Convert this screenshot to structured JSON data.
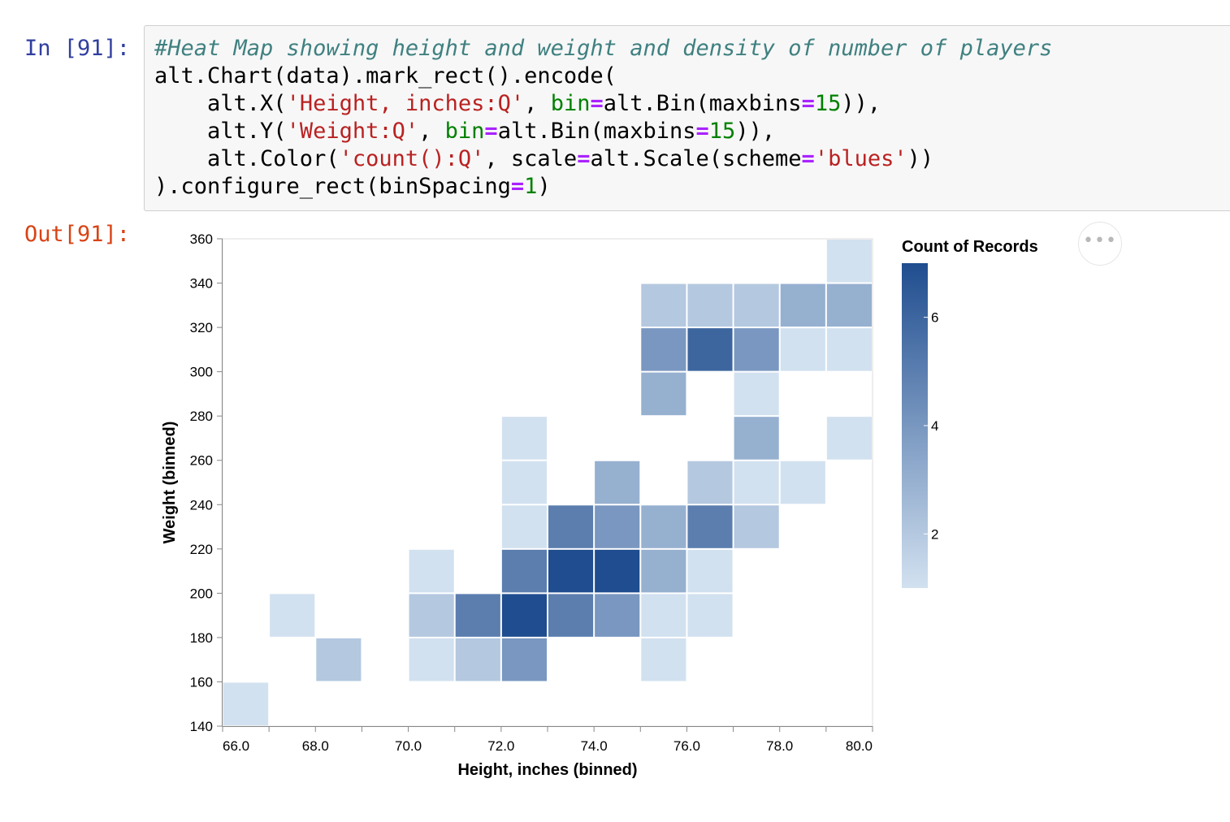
{
  "notebook": {
    "in_prompt": "In [91]:",
    "out_prompt": "Out[91]:",
    "code_lines": [
      [
        {
          "t": "#Heat Map showing height and weight and density of number of players",
          "c": "comment"
        }
      ],
      [
        {
          "t": "alt.Chart(data).mark_rect().encode(",
          "c": ""
        }
      ],
      [
        {
          "t": "    alt.X(",
          "c": ""
        },
        {
          "t": "'Height, inches:Q'",
          "c": "string"
        },
        {
          "t": ", ",
          "c": ""
        },
        {
          "t": "bin",
          "c": "kw"
        },
        {
          "t": "=",
          "c": "op"
        },
        {
          "t": "alt.Bin(maxbins",
          "c": ""
        },
        {
          "t": "=",
          "c": "op"
        },
        {
          "t": "15",
          "c": "num"
        },
        {
          "t": ")),",
          "c": ""
        }
      ],
      [
        {
          "t": "    alt.Y(",
          "c": ""
        },
        {
          "t": "'Weight:Q'",
          "c": "string"
        },
        {
          "t": ", ",
          "c": ""
        },
        {
          "t": "bin",
          "c": "kw"
        },
        {
          "t": "=",
          "c": "op"
        },
        {
          "t": "alt.Bin(maxbins",
          "c": ""
        },
        {
          "t": "=",
          "c": "op"
        },
        {
          "t": "15",
          "c": "num"
        },
        {
          "t": ")),",
          "c": ""
        }
      ],
      [
        {
          "t": "    alt.Color(",
          "c": ""
        },
        {
          "t": "'count():Q'",
          "c": "string"
        },
        {
          "t": ", scale",
          "c": ""
        },
        {
          "t": "=",
          "c": "op"
        },
        {
          "t": "alt.Scale(scheme",
          "c": ""
        },
        {
          "t": "=",
          "c": "op"
        },
        {
          "t": "'blues'",
          "c": "string"
        },
        {
          "t": "))",
          "c": ""
        }
      ],
      [
        {
          "t": ").configure_rect(binSpacing",
          "c": ""
        },
        {
          "t": "=",
          "c": "op"
        },
        {
          "t": "1",
          "c": "num"
        },
        {
          "t": ")",
          "c": ""
        }
      ]
    ],
    "actions_icon": "ellipsis-icon",
    "actions_label": "•••"
  },
  "colors": {
    "scale_low": "#d2e1f0",
    "scale_high": "#1f4d8f"
  },
  "chart_data": {
    "type": "heatmap",
    "xlabel": "Height, inches (binned)",
    "ylabel": "Weight (binned)",
    "legend_title": "Count of Records",
    "legend_position": "right",
    "xlim": [
      66,
      80
    ],
    "ylim": [
      140,
      360
    ],
    "x_bin_step": 1,
    "y_bin_step": 20,
    "x_ticks": [
      "66.0",
      "68.0",
      "70.0",
      "72.0",
      "74.0",
      "76.0",
      "78.0",
      "80.0"
    ],
    "y_ticks": [
      "140",
      "160",
      "180",
      "200",
      "220",
      "240",
      "260",
      "280",
      "300",
      "320",
      "340",
      "360"
    ],
    "legend_ticks": [
      "2",
      "4",
      "6"
    ],
    "color_domain": [
      1,
      7
    ],
    "cells": [
      {
        "x": 66,
        "y": 140,
        "count": 1
      },
      {
        "x": 67,
        "y": 180,
        "count": 1
      },
      {
        "x": 68,
        "y": 160,
        "count": 2
      },
      {
        "x": 70,
        "y": 160,
        "count": 1
      },
      {
        "x": 70,
        "y": 180,
        "count": 2
      },
      {
        "x": 70,
        "y": 200,
        "count": 1
      },
      {
        "x": 71,
        "y": 160,
        "count": 2
      },
      {
        "x": 71,
        "y": 180,
        "count": 5
      },
      {
        "x": 72,
        "y": 160,
        "count": 4
      },
      {
        "x": 72,
        "y": 180,
        "count": 7
      },
      {
        "x": 72,
        "y": 200,
        "count": 5
      },
      {
        "x": 72,
        "y": 220,
        "count": 1
      },
      {
        "x": 72,
        "y": 240,
        "count": 1
      },
      {
        "x": 72,
        "y": 260,
        "count": 1
      },
      {
        "x": 73,
        "y": 180,
        "count": 5
      },
      {
        "x": 73,
        "y": 200,
        "count": 7
      },
      {
        "x": 73,
        "y": 220,
        "count": 5
      },
      {
        "x": 74,
        "y": 180,
        "count": 4
      },
      {
        "x": 74,
        "y": 200,
        "count": 7
      },
      {
        "x": 74,
        "y": 220,
        "count": 4
      },
      {
        "x": 74,
        "y": 240,
        "count": 3
      },
      {
        "x": 75,
        "y": 160,
        "count": 1
      },
      {
        "x": 75,
        "y": 180,
        "count": 1
      },
      {
        "x": 75,
        "y": 200,
        "count": 3
      },
      {
        "x": 75,
        "y": 220,
        "count": 3
      },
      {
        "x": 75,
        "y": 280,
        "count": 3
      },
      {
        "x": 75,
        "y": 300,
        "count": 4
      },
      {
        "x": 75,
        "y": 320,
        "count": 2
      },
      {
        "x": 76,
        "y": 180,
        "count": 1
      },
      {
        "x": 76,
        "y": 200,
        "count": 1
      },
      {
        "x": 76,
        "y": 220,
        "count": 5
      },
      {
        "x": 76,
        "y": 240,
        "count": 2
      },
      {
        "x": 76,
        "y": 300,
        "count": 6
      },
      {
        "x": 76,
        "y": 320,
        "count": 2
      },
      {
        "x": 77,
        "y": 220,
        "count": 2
      },
      {
        "x": 77,
        "y": 240,
        "count": 1
      },
      {
        "x": 77,
        "y": 260,
        "count": 3
      },
      {
        "x": 77,
        "y": 280,
        "count": 1
      },
      {
        "x": 77,
        "y": 300,
        "count": 4
      },
      {
        "x": 77,
        "y": 320,
        "count": 2
      },
      {
        "x": 78,
        "y": 240,
        "count": 1
      },
      {
        "x": 78,
        "y": 300,
        "count": 1
      },
      {
        "x": 78,
        "y": 320,
        "count": 3
      },
      {
        "x": 79,
        "y": 260,
        "count": 1
      },
      {
        "x": 79,
        "y": 300,
        "count": 1
      },
      {
        "x": 79,
        "y": 320,
        "count": 3
      },
      {
        "x": 79,
        "y": 340,
        "count": 1
      }
    ]
  }
}
